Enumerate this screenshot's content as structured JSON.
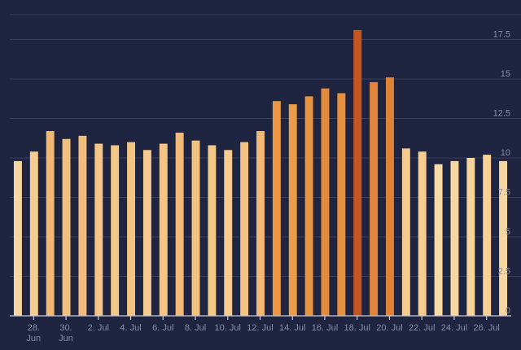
{
  "chart_data": {
    "type": "bar",
    "title": "",
    "xlabel": "",
    "ylabel": "",
    "ylim": [
      0,
      20
    ],
    "grid": true,
    "y_axis_side": "right",
    "y_ticks": [
      "0",
      "2.5",
      "5",
      "7.5",
      "10",
      "12.5",
      "15",
      "17.5"
    ],
    "categories": [
      "27 Jun",
      "28 Jun",
      "29 Jun",
      "30 Jun",
      "1 Jul",
      "2 Jul",
      "3 Jul",
      "4 Jul",
      "5 Jul",
      "6 Jul",
      "7 Jul",
      "8 Jul",
      "9 Jul",
      "10 Jul",
      "11 Jul",
      "12 Jul",
      "13 Jul",
      "14 Jul",
      "15 Jul",
      "16 Jul",
      "17 Jul",
      "18 Jul",
      "19 Jul",
      "20 Jul",
      "21 Jul",
      "22 Jul",
      "23 Jul",
      "24 Jul",
      "25 Jul",
      "26 Jul",
      "27 Jul"
    ],
    "values": [
      9.8,
      10.4,
      11.7,
      11.2,
      11.4,
      10.9,
      10.8,
      11.0,
      10.5,
      10.9,
      11.6,
      11.1,
      10.8,
      10.5,
      11.0,
      11.7,
      13.6,
      13.4,
      13.9,
      14.4,
      14.1,
      18.1,
      14.8,
      15.1,
      10.6,
      10.4,
      9.6,
      9.8,
      10.0,
      10.2,
      9.8
    ],
    "x_tick_labels": [
      {
        "index": 1,
        "text": "28. Jun"
      },
      {
        "index": 3,
        "text": "30. Jun"
      },
      {
        "index": 5,
        "text": "2. Jul"
      },
      {
        "index": 7,
        "text": "4. Jul"
      },
      {
        "index": 9,
        "text": "6. Jul"
      },
      {
        "index": 11,
        "text": "8. Jul"
      },
      {
        "index": 13,
        "text": "10. Jul"
      },
      {
        "index": 15,
        "text": "12. Jul"
      },
      {
        "index": 17,
        "text": "14. Jul"
      },
      {
        "index": 19,
        "text": "16. Jul"
      },
      {
        "index": 21,
        "text": "18. Jul"
      },
      {
        "index": 23,
        "text": "20. Jul"
      },
      {
        "index": 25,
        "text": "22. Jul"
      },
      {
        "index": 27,
        "text": "24. Jul"
      },
      {
        "index": 29,
        "text": "26. Jul"
      }
    ],
    "color_scale": {
      "low": "#f8dca8",
      "mid": "#e9953f",
      "high": "#c65621",
      "domain": [
        9.5,
        18.1
      ]
    },
    "colors": {
      "background": "#1f2440",
      "grid": "#3a3f5c",
      "axis": "#c9c9d3",
      "tick_text": "#8a8fa8"
    }
  }
}
